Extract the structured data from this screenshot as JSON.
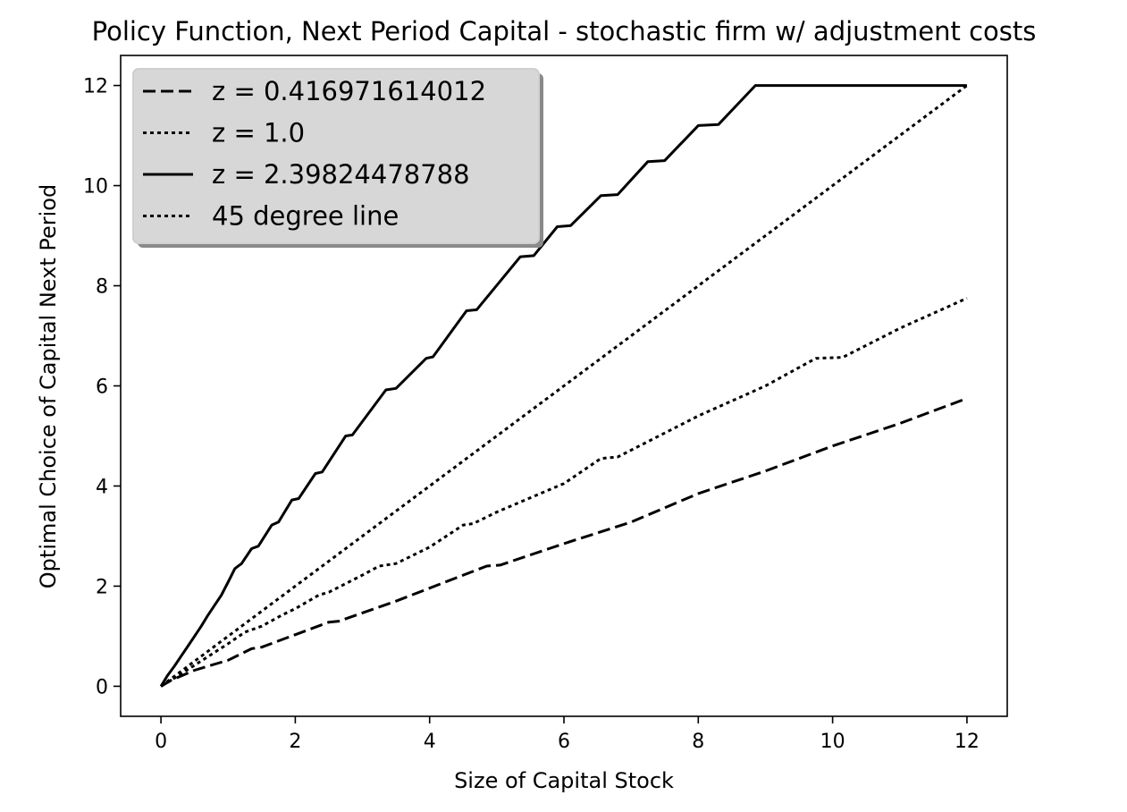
{
  "chart_data": {
    "type": "line",
    "title": "Policy Function, Next Period Capital - stochastic firm w/ adjustment costs",
    "xlabel": "Size of Capital Stock",
    "ylabel": "Optimal Choice of Capital Next Period",
    "xlim": [
      -0.6,
      12.6
    ],
    "ylim": [
      -0.6,
      12.6
    ],
    "xticks": [
      0,
      2,
      4,
      6,
      8,
      10,
      12
    ],
    "yticks": [
      0,
      2,
      4,
      6,
      8,
      10,
      12
    ],
    "grid": false,
    "legend_position": "top-left",
    "series": [
      {
        "name": "z = 0.416971614012",
        "line_style": "dashed",
        "color": "#000000",
        "points": [
          [
            0,
            0
          ],
          [
            0.15,
            0.12
          ],
          [
            0.5,
            0.32
          ],
          [
            0.9,
            0.48
          ],
          [
            1.0,
            0.52
          ],
          [
            1.35,
            0.75
          ],
          [
            1.5,
            0.78
          ],
          [
            2.5,
            1.28
          ],
          [
            2.65,
            1.3
          ],
          [
            3.5,
            1.7
          ],
          [
            4.5,
            2.22
          ],
          [
            4.85,
            2.4
          ],
          [
            5.05,
            2.42
          ],
          [
            6.0,
            2.85
          ],
          [
            7.0,
            3.28
          ],
          [
            8.0,
            3.85
          ],
          [
            9.0,
            4.3
          ],
          [
            10.0,
            4.8
          ],
          [
            11.0,
            5.25
          ],
          [
            12.0,
            5.75
          ]
        ]
      },
      {
        "name": "z = 1.0",
        "line_style": "dotted",
        "color": "#000000",
        "points": [
          [
            0,
            0
          ],
          [
            0.15,
            0.12
          ],
          [
            0.5,
            0.42
          ],
          [
            1.0,
            0.85
          ],
          [
            1.25,
            1.08
          ],
          [
            1.5,
            1.2
          ],
          [
            1.8,
            1.42
          ],
          [
            2.0,
            1.55
          ],
          [
            2.35,
            1.82
          ],
          [
            2.5,
            1.88
          ],
          [
            3.0,
            2.22
          ],
          [
            3.25,
            2.4
          ],
          [
            3.5,
            2.45
          ],
          [
            4.0,
            2.78
          ],
          [
            4.5,
            3.22
          ],
          [
            4.65,
            3.25
          ],
          [
            5.0,
            3.48
          ],
          [
            6.0,
            4.05
          ],
          [
            6.55,
            4.55
          ],
          [
            6.8,
            4.58
          ],
          [
            8.0,
            5.4
          ],
          [
            9.0,
            6.0
          ],
          [
            9.75,
            6.55
          ],
          [
            10.15,
            6.57
          ],
          [
            11.0,
            7.15
          ],
          [
            12.0,
            7.75
          ]
        ]
      },
      {
        "name": "z = 2.39824478788",
        "line_style": "solid",
        "color": "#000000",
        "points": [
          [
            0,
            0
          ],
          [
            0.1,
            0.22
          ],
          [
            0.2,
            0.4
          ],
          [
            0.3,
            0.6
          ],
          [
            0.4,
            0.8
          ],
          [
            0.5,
            1.0
          ],
          [
            0.6,
            1.2
          ],
          [
            0.7,
            1.42
          ],
          [
            0.8,
            1.62
          ],
          [
            0.9,
            1.82
          ],
          [
            1.0,
            2.08
          ],
          [
            1.1,
            2.35
          ],
          [
            1.2,
            2.45
          ],
          [
            1.35,
            2.75
          ],
          [
            1.45,
            2.8
          ],
          [
            1.65,
            3.22
          ],
          [
            1.75,
            3.28
          ],
          [
            1.95,
            3.72
          ],
          [
            2.05,
            3.75
          ],
          [
            2.3,
            4.25
          ],
          [
            2.4,
            4.28
          ],
          [
            2.75,
            5.0
          ],
          [
            2.85,
            5.02
          ],
          [
            3.35,
            5.92
          ],
          [
            3.5,
            5.95
          ],
          [
            3.95,
            6.55
          ],
          [
            4.05,
            6.58
          ],
          [
            4.55,
            7.5
          ],
          [
            4.7,
            7.52
          ],
          [
            5.35,
            8.58
          ],
          [
            5.55,
            8.6
          ],
          [
            5.9,
            9.18
          ],
          [
            6.1,
            9.2
          ],
          [
            6.55,
            9.8
          ],
          [
            6.8,
            9.82
          ],
          [
            7.25,
            10.48
          ],
          [
            7.5,
            10.5
          ],
          [
            8.0,
            11.2
          ],
          [
            8.3,
            11.22
          ],
          [
            8.85,
            12.0
          ],
          [
            12.0,
            12.0
          ]
        ]
      },
      {
        "name": "45 degree line",
        "line_style": "dotted",
        "color": "#000000",
        "points": [
          [
            0,
            0
          ],
          [
            12,
            12
          ]
        ]
      }
    ]
  }
}
